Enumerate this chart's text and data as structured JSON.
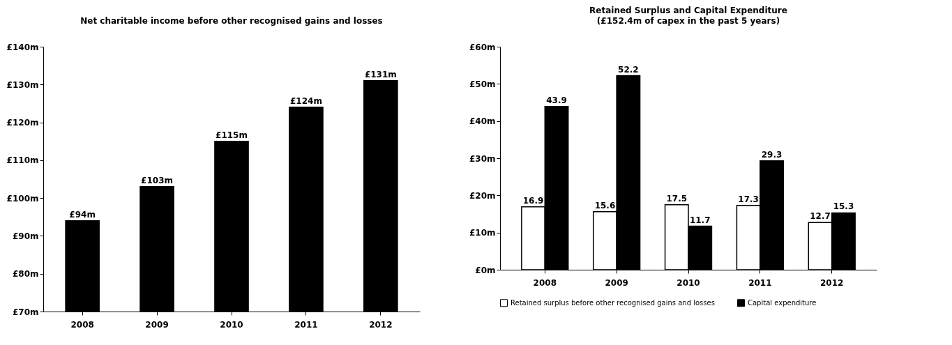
{
  "chart_data": [
    {
      "type": "bar",
      "title": "Net charitable income before other recognised gains and losses",
      "categories": [
        "2008",
        "2009",
        "2010",
        "2011",
        "2012"
      ],
      "values": [
        94,
        103,
        115,
        124,
        131
      ],
      "color": "#000000",
      "value_labels": [
        "£94m",
        "£103m",
        "£115m",
        "£124m",
        "£131m"
      ],
      "ylim": [
        70,
        140
      ],
      "yticks": [
        {
          "value": 70,
          "label": "£70m"
        },
        {
          "value": 80,
          "label": "£80m"
        },
        {
          "value": 90,
          "label": "£90m"
        },
        {
          "value": 100,
          "label": "£100m"
        },
        {
          "value": 110,
          "label": "£110m"
        },
        {
          "value": 120,
          "label": "£120m"
        },
        {
          "value": 130,
          "label": "£130m"
        },
        {
          "value": 140,
          "label": "£140m"
        }
      ],
      "grid": false
    },
    {
      "type": "bar",
      "title": "Retained Surplus and Capital Expenditure",
      "subtitle": "(£152.4m of capex in the past 5 years)",
      "categories": [
        "2008",
        "2009",
        "2010",
        "2011",
        "2012"
      ],
      "series": [
        {
          "name": "Retained surplus before other recognised gains and losses",
          "color": "#ffffff",
          "values": [
            16.9,
            15.6,
            17.5,
            17.3,
            12.7
          ]
        },
        {
          "name": "Capital expenditure",
          "color": "#000000",
          "values": [
            43.9,
            52.2,
            11.7,
            29.3,
            15.3
          ]
        }
      ],
      "ylim": [
        0,
        60
      ],
      "yticks": [
        {
          "value": 0,
          "label": "£0m"
        },
        {
          "value": 10,
          "label": "£10m"
        },
        {
          "value": 20,
          "label": "£20m"
        },
        {
          "value": 30,
          "label": "£30m"
        },
        {
          "value": 40,
          "label": "£40m"
        },
        {
          "value": 50,
          "label": "£50m"
        },
        {
          "value": 60,
          "label": "£60m"
        }
      ],
      "data_labels": true,
      "grid": false,
      "legend": "bottom"
    }
  ]
}
